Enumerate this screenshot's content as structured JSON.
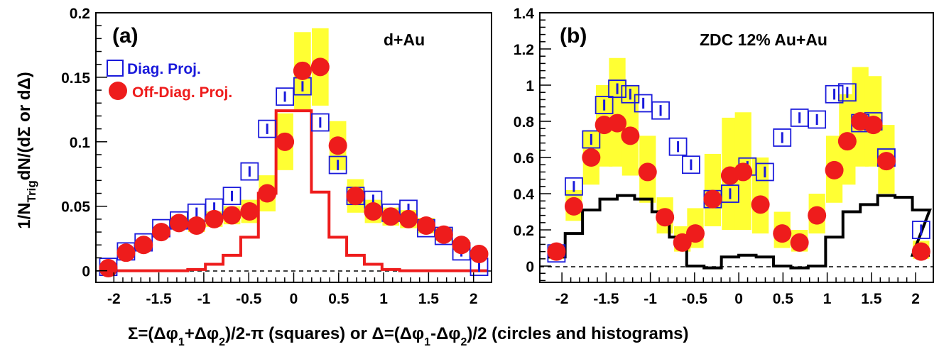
{
  "xlabel": {
    "p1": "Σ=(Δφ",
    "s1": "1",
    "p2": "+Δφ",
    "s2": "2",
    "p3": ")/2-π (squares) or Δ=(Δφ",
    "s3": "1",
    "p4": "-Δφ",
    "s4": "2",
    "p5": ")/2 (circles and histograms)"
  },
  "ylabel": {
    "main": "1/N",
    "sub": "Trig",
    "rest": "dN/(dΣ or dΔ)"
  },
  "colors": {
    "squares": "#1a1adb",
    "circles": "#ee1c1c",
    "band": "#ffff33",
    "hist_a": "#ee1c1c",
    "hist_b": "#000000"
  },
  "chart_data": [
    {
      "type": "scatter",
      "panel": "(a)",
      "system": "d+Au",
      "legend": {
        "placement": "top-left",
        "squares": "Diag. Proj.",
        "circles": "Off-Diag. Proj."
      },
      "xlim": [
        -2.2,
        2.2
      ],
      "ylim": [
        -0.009,
        0.2
      ],
      "xticks": [
        -2,
        -1.5,
        -1,
        -0.5,
        0,
        0.5,
        1,
        1.5,
        2
      ],
      "xtick_labels": [
        "-2",
        "-1.5",
        "-1",
        "-0.5",
        "0",
        "0.5",
        "1",
        "1.5",
        "2"
      ],
      "yticks": [
        0,
        0.05,
        0.1,
        0.15,
        0.2
      ],
      "ytick_labels": [
        "0",
        "0.05",
        "0.1",
        "0.15",
        "0.2"
      ],
      "bin_width": 0.1963,
      "x": [
        -2.062,
        -1.865,
        -1.669,
        -1.473,
        -1.276,
        -1.08,
        -0.884,
        -0.687,
        -0.491,
        -0.295,
        -0.098,
        0.098,
        0.295,
        0.491,
        0.687,
        0.884,
        1.08,
        1.276,
        1.473,
        1.669,
        1.865,
        2.062
      ],
      "squares": [
        0.003,
        0.015,
        0.022,
        0.033,
        0.039,
        0.045,
        0.049,
        0.058,
        0.077,
        0.11,
        0.135,
        0.143,
        0.115,
        0.082,
        0.058,
        0.055,
        0.045,
        0.048,
        0.033,
        0.027,
        0.015,
        0.003
      ],
      "circles": [
        0.002,
        0.014,
        0.02,
        0.03,
        0.037,
        0.035,
        0.04,
        0.043,
        0.046,
        0.06,
        0.1,
        0.155,
        0.158,
        0.097,
        0.058,
        0.046,
        0.042,
        0.04,
        0.035,
        0.028,
        0.02,
        0.013
      ],
      "circles_band": [
        [
          0.001,
          0.004
        ],
        [
          0.012,
          0.016
        ],
        [
          0.017,
          0.023
        ],
        [
          0.026,
          0.034
        ],
        [
          0.032,
          0.042
        ],
        [
          0.03,
          0.04
        ],
        [
          0.034,
          0.046
        ],
        [
          0.036,
          0.05
        ],
        [
          0.037,
          0.055
        ],
        [
          0.046,
          0.074
        ],
        [
          0.078,
          0.122
        ],
        [
          0.125,
          0.185
        ],
        [
          0.128,
          0.188
        ],
        [
          0.078,
          0.116
        ],
        [
          0.045,
          0.071
        ],
        [
          0.037,
          0.055
        ],
        [
          0.035,
          0.049
        ],
        [
          0.033,
          0.047
        ],
        [
          0.029,
          0.041
        ],
        [
          0.023,
          0.033
        ],
        [
          0.016,
          0.024
        ],
        [
          0.01,
          0.016
        ]
      ],
      "histogram": [
        0,
        0,
        0,
        0,
        0,
        0.001,
        0.005,
        0.012,
        0.026,
        0.06,
        0.124,
        0.124,
        0.061,
        0.026,
        0.012,
        0.005,
        0.001,
        0,
        0,
        0,
        0,
        0
      ]
    },
    {
      "type": "scatter",
      "panel": "(b)",
      "system": "ZDC 12% Au+Au",
      "xlim": [
        -2.25,
        2.2
      ],
      "ylim": [
        -0.09,
        1.4
      ],
      "xticks": [
        -2,
        -1.5,
        -1,
        -0.5,
        0,
        0.5,
        1,
        1.5,
        2
      ],
      "xtick_labels": [
        "-2",
        "-1.5",
        "-1",
        "-0.5",
        "0",
        "0.5",
        "1",
        "1.5",
        "2"
      ],
      "yticks": [
        0,
        0.2,
        0.4,
        0.6,
        0.8,
        1.0,
        1.2,
        1.4
      ],
      "ytick_labels": [
        "0",
        "0.2",
        "0.4",
        "0.6",
        "0.8",
        "1",
        "1.2",
        "1.4"
      ],
      "bin_width": 0.1963,
      "x": [
        -2.062,
        -1.865,
        -1.669,
        -1.473,
        -1.276,
        -1.08,
        -0.884,
        -0.687,
        -0.491,
        -0.295,
        -0.098,
        0.098,
        0.295,
        0.491,
        0.687,
        0.884,
        1.08,
        1.276,
        1.473,
        1.669,
        1.865,
        2.062
      ],
      "squares": [
        0.07,
        0.44,
        0.7,
        0.89,
        0.98,
        0.95,
        0.9,
        0.86,
        0.66,
        0.56,
        0.37,
        0.4,
        0.55,
        0.52,
        0.71,
        0.82,
        0.81,
        0.95,
        0.96,
        0.79,
        0.8,
        0.6,
        0.2
      ],
      "squares_x": [
        -2.062,
        -1.865,
        -1.669,
        -1.522,
        -1.374,
        -1.227,
        -1.08,
        -0.884,
        -0.687,
        -0.54,
        -0.295,
        -0.098,
        0.098,
        0.295,
        0.491,
        0.687,
        0.884,
        1.08,
        1.227,
        1.374,
        1.522,
        1.669,
        2.062
      ],
      "circles": [
        0.08,
        0.33,
        0.6,
        0.78,
        0.79,
        0.72,
        0.52,
        0.27,
        0.13,
        0.18,
        0.37,
        0.5,
        0.52,
        0.34,
        0.18,
        0.13,
        0.28,
        0.53,
        0.69,
        0.8,
        0.78,
        0.58,
        0.08
      ],
      "circles_x": [
        -2.062,
        -1.865,
        -1.669,
        -1.522,
        -1.374,
        -1.227,
        -1.031,
        -0.835,
        -0.638,
        -0.491,
        -0.295,
        -0.098,
        0.049,
        0.245,
        0.491,
        0.687,
        0.884,
        1.08,
        1.227,
        1.374,
        1.522,
        1.669,
        2.062
      ],
      "circles_band": [
        [
          0.04,
          0.12
        ],
        [
          0.25,
          0.42
        ],
        [
          0.45,
          0.75
        ],
        [
          0.55,
          1.0
        ],
        [
          0.55,
          1.15
        ],
        [
          0.5,
          1.0
        ],
        [
          0.35,
          0.72
        ],
        [
          0.18,
          0.38
        ],
        [
          0.08,
          0.22
        ],
        [
          0.1,
          0.32
        ],
        [
          0.22,
          0.62
        ],
        [
          0.2,
          0.82
        ],
        [
          0.2,
          0.85
        ],
        [
          0.18,
          0.6
        ],
        [
          0.1,
          0.3
        ],
        [
          0.08,
          0.2
        ],
        [
          0.18,
          0.4
        ],
        [
          0.35,
          0.72
        ],
        [
          0.45,
          0.95
        ],
        [
          0.55,
          1.1
        ],
        [
          0.55,
          1.05
        ],
        [
          0.4,
          0.78
        ],
        [
          0.04,
          0.14
        ]
      ],
      "histogram": [
        0.05,
        0.18,
        0.31,
        0.37,
        0.39,
        0.37,
        0.3,
        0.16,
        0.0,
        -0.01,
        0.05,
        0.06,
        0.05,
        0.0,
        -0.01,
        0.0,
        0.16,
        0.3,
        0.34,
        0.39,
        0.38,
        0.31,
        0.06
      ]
    }
  ]
}
